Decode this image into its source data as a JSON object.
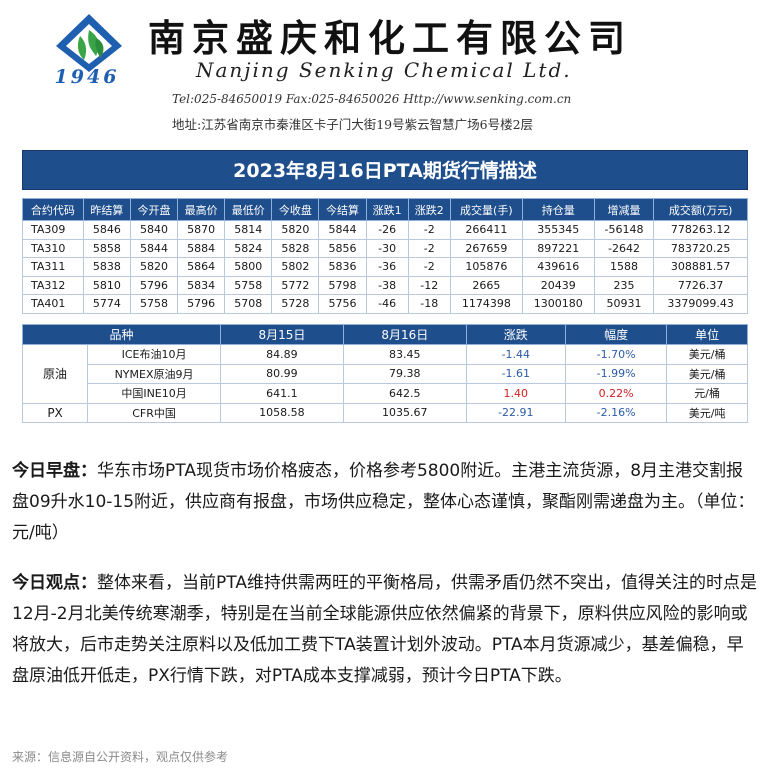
{
  "header": {
    "logo_year": "1946",
    "company_cn": "南京盛庆和化工有限公司",
    "company_en": "Nanjing Senking Chemical Ltd.",
    "contact": "Tel:025-84650019  Fax:025-84650026 Http://www.senking.com.cn",
    "address": "地址:江苏省南京市秦淮区卡子门大街19号紫云智慧广场6号楼2层",
    "colors": {
      "brand_blue": "#1f5fb0",
      "brand_green": "#3aa547"
    }
  },
  "title": "2023年8月16日PTA期货行情描述",
  "futures": {
    "headers": [
      "合约代码",
      "昨结算",
      "今开盘",
      "最高价",
      "最低价",
      "今收盘",
      "今结算",
      "涨跌1",
      "涨跌2",
      "成交量(手)",
      "持仓量",
      "增减量",
      "成交额(万元)"
    ],
    "rows": [
      [
        "TA309",
        "5846",
        "5840",
        "5870",
        "5814",
        "5820",
        "5844",
        "-26",
        "-2",
        "266411",
        "355345",
        "-56148",
        "778263.12"
      ],
      [
        "TA310",
        "5858",
        "5844",
        "5884",
        "5824",
        "5828",
        "5856",
        "-30",
        "-2",
        "267659",
        "897221",
        "-2642",
        "783720.25"
      ],
      [
        "TA311",
        "5838",
        "5820",
        "5864",
        "5800",
        "5802",
        "5836",
        "-36",
        "-2",
        "105876",
        "439616",
        "1588",
        "308881.57"
      ],
      [
        "TA312",
        "5810",
        "5796",
        "5834",
        "5758",
        "5772",
        "5798",
        "-38",
        "-12",
        "2665",
        "20439",
        "235",
        "7726.37"
      ],
      [
        "TA401",
        "5774",
        "5758",
        "5796",
        "5708",
        "5728",
        "5756",
        "-46",
        "-18",
        "1174398",
        "1300180",
        "50931",
        "3379099.43"
      ]
    ]
  },
  "commodities": {
    "headers": [
      "品种",
      "8月15日",
      "8月16日",
      "涨跌",
      "幅度",
      "单位"
    ],
    "group_crude": "原油",
    "group_px": "PX",
    "rows": [
      {
        "name": "ICE布油10月",
        "d15": "84.89",
        "d16": "83.45",
        "chg": "-1.44",
        "pct": "-1.70%",
        "unit": "美元/桶"
      },
      {
        "name": "NYMEX原油9月",
        "d15": "80.99",
        "d16": "79.38",
        "chg": "-1.61",
        "pct": "-1.99%",
        "unit": "美元/桶"
      },
      {
        "name": "中国INE10月",
        "d15": "641.1",
        "d16": "642.5",
        "chg": "1.40",
        "pct": "0.22%",
        "unit": "元/桶"
      },
      {
        "name": "CFR中国",
        "d15": "1058.58",
        "d16": "1035.67",
        "chg": "-22.91",
        "pct": "-2.16%",
        "unit": "美元/吨"
      }
    ]
  },
  "morning": {
    "label": "今日早盘：",
    "text": "华东市场PTA现货市场价格疲态，价格参考5800附近。主港主流货源，8月主港交割报盘09升水10-15附近，供应商有报盘，市场供应稳定，整体心态谨慎，聚酯刚需递盘为主。（单位：元/吨）"
  },
  "view": {
    "label": "今日观点：",
    "text": "整体来看，当前PTA维持供需两旺的平衡格局，供需矛盾仍然不突出，值得关注的时点是12月-2月北美传统寒潮季，特别是在当前全球能源供应依然偏紧的背景下，原料供应风险的影响或将放大，后市走势关注原料以及低加工费下TA装置计划外波动。PTA本月货源减少，基差偏稳，早盘原油低开低走，PX行情下跌，对PTA成本支撑减弱，预计今日PTA下跌。"
  },
  "source": "来源：信息源自公开资料，观点仅供参考"
}
